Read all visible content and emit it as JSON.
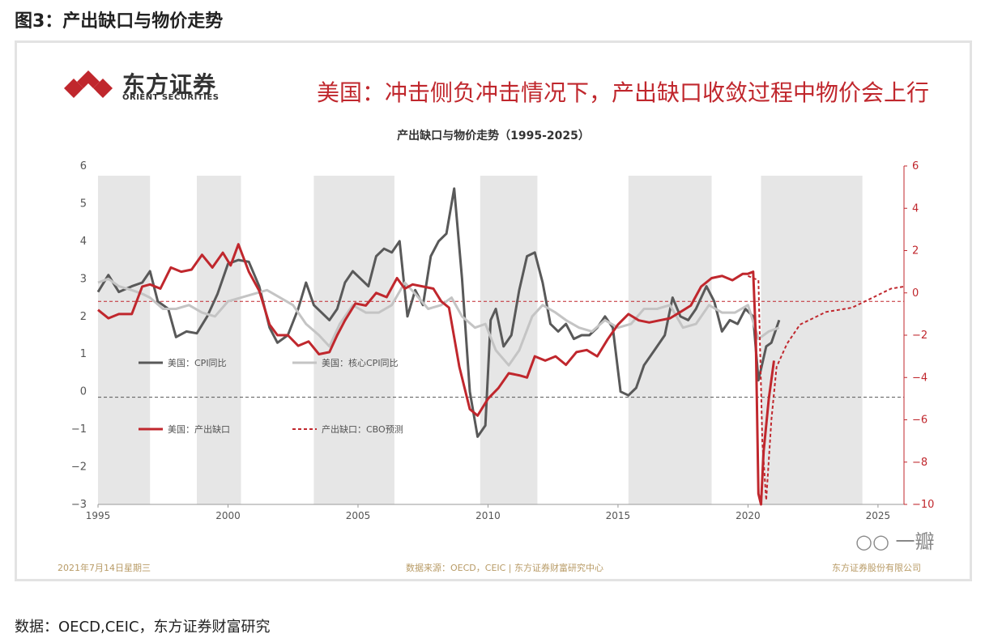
{
  "figure": {
    "title": "图3：产出缺口与物价走势",
    "source_note": "数据：OECD,CEIC，东方证券财富研究"
  },
  "card": {
    "logo_cn": "东方证券",
    "logo_en": "ORIENT SECURITIES",
    "headline": "美国：冲击侧负冲击情况下，产出缺口收敛过程中物价会上行",
    "footer_date": "2021年7月14日星期三",
    "footer_source": "数据来源：OECD，CEIC | 东方证券财富研究中心",
    "footer_company": "东方证券股份有限公司",
    "watermark": "一瓣"
  },
  "chart_data": {
    "type": "line",
    "title": "产出缺口与物价走势（1995-2025）",
    "x_ticks": [
      "1995",
      "2000",
      "2005",
      "2010",
      "2015",
      "2020",
      "2025"
    ],
    "xlim": [
      1995,
      2026
    ],
    "left_axis": {
      "ticks": [
        "6",
        "5",
        "4",
        "3",
        "2",
        "1",
        "0",
        "−1",
        "−2",
        "−3"
      ],
      "ylim": [
        -3,
        6
      ]
    },
    "right_axis": {
      "ticks": [
        "6",
        "4",
        "2",
        "0",
        "−2",
        "−4",
        "−6",
        "−8",
        "−10"
      ],
      "ylim": [
        -10,
        6
      ]
    },
    "recession_shading": [
      [
        1995.0,
        1997.0
      ],
      [
        1998.8,
        2000.5
      ],
      [
        2003.3,
        2006.4
      ],
      [
        2009.7,
        2011.9
      ],
      [
        2015.4,
        2018.6
      ],
      [
        2020.5,
        2024.4
      ]
    ],
    "reference_lines": [
      {
        "axis": "left",
        "value": -0.15,
        "style": "dashed",
        "color": "#555555"
      },
      {
        "axis": "right",
        "value": -0.4,
        "style": "dashed",
        "color": "#c0272d"
      }
    ],
    "series": [
      {
        "name": "美国：CPI同比",
        "axis": "left",
        "color": "#595959",
        "style": "solid",
        "points": [
          [
            1995.0,
            2.65
          ],
          [
            1995.4,
            3.1
          ],
          [
            1995.8,
            2.65
          ],
          [
            1996.3,
            2.8
          ],
          [
            1996.7,
            2.9
          ],
          [
            1997.0,
            3.2
          ],
          [
            1997.3,
            2.4
          ],
          [
            1997.7,
            2.2
          ],
          [
            1998.0,
            1.45
          ],
          [
            1998.4,
            1.6
          ],
          [
            1998.8,
            1.55
          ],
          [
            1999.2,
            2.0
          ],
          [
            1999.6,
            2.6
          ],
          [
            2000.0,
            3.4
          ],
          [
            2000.4,
            3.5
          ],
          [
            2000.8,
            3.45
          ],
          [
            2001.2,
            2.8
          ],
          [
            2001.6,
            1.7
          ],
          [
            2001.9,
            1.3
          ],
          [
            2002.3,
            1.5
          ],
          [
            2002.7,
            2.2
          ],
          [
            2003.0,
            2.9
          ],
          [
            2003.3,
            2.3
          ],
          [
            2003.6,
            2.1
          ],
          [
            2003.9,
            1.9
          ],
          [
            2004.2,
            2.2
          ],
          [
            2004.5,
            2.9
          ],
          [
            2004.8,
            3.2
          ],
          [
            2005.1,
            3.0
          ],
          [
            2005.4,
            2.8
          ],
          [
            2005.7,
            3.6
          ],
          [
            2006.0,
            3.8
          ],
          [
            2006.3,
            3.7
          ],
          [
            2006.6,
            4.0
          ],
          [
            2006.9,
            2.0
          ],
          [
            2007.2,
            2.7
          ],
          [
            2007.5,
            2.3
          ],
          [
            2007.8,
            3.6
          ],
          [
            2008.1,
            4.0
          ],
          [
            2008.4,
            4.2
          ],
          [
            2008.7,
            5.4
          ],
          [
            2009.0,
            3.0
          ],
          [
            2009.3,
            0.0
          ],
          [
            2009.6,
            -1.2
          ],
          [
            2009.9,
            -0.9
          ],
          [
            2010.1,
            1.9
          ],
          [
            2010.3,
            2.2
          ],
          [
            2010.6,
            1.2
          ],
          [
            2010.9,
            1.5
          ],
          [
            2011.2,
            2.7
          ],
          [
            2011.5,
            3.6
          ],
          [
            2011.8,
            3.7
          ],
          [
            2012.1,
            2.9
          ],
          [
            2012.4,
            1.8
          ],
          [
            2012.7,
            1.6
          ],
          [
            2013.0,
            1.8
          ],
          [
            2013.3,
            1.4
          ],
          [
            2013.6,
            1.5
          ],
          [
            2013.9,
            1.5
          ],
          [
            2014.2,
            1.7
          ],
          [
            2014.5,
            2.0
          ],
          [
            2014.8,
            1.7
          ],
          [
            2015.1,
            0.0
          ],
          [
            2015.4,
            -0.1
          ],
          [
            2015.7,
            0.1
          ],
          [
            2016.0,
            0.7
          ],
          [
            2016.4,
            1.1
          ],
          [
            2016.8,
            1.5
          ],
          [
            2017.1,
            2.5
          ],
          [
            2017.4,
            2.0
          ],
          [
            2017.7,
            1.9
          ],
          [
            2018.0,
            2.2
          ],
          [
            2018.4,
            2.8
          ],
          [
            2018.7,
            2.4
          ],
          [
            2019.0,
            1.6
          ],
          [
            2019.3,
            1.9
          ],
          [
            2019.6,
            1.8
          ],
          [
            2019.9,
            2.2
          ],
          [
            2020.2,
            2.0
          ],
          [
            2020.4,
            0.3
          ],
          [
            2020.7,
            1.2
          ],
          [
            2020.9,
            1.3
          ],
          [
            2021.2,
            1.9
          ]
        ]
      },
      {
        "name": "美国：核心CPI同比",
        "axis": "left",
        "color": "#c4c4c4",
        "style": "solid",
        "points": [
          [
            1995.0,
            2.9
          ],
          [
            1995.4,
            3.0
          ],
          [
            1995.8,
            2.8
          ],
          [
            1996.3,
            2.7
          ],
          [
            1996.7,
            2.6
          ],
          [
            1997.0,
            2.5
          ],
          [
            1997.5,
            2.2
          ],
          [
            1998.0,
            2.2
          ],
          [
            1998.5,
            2.3
          ],
          [
            1999.0,
            2.1
          ],
          [
            1999.5,
            2.0
          ],
          [
            2000.0,
            2.4
          ],
          [
            2000.5,
            2.5
          ],
          [
            2001.0,
            2.6
          ],
          [
            2001.5,
            2.7
          ],
          [
            2002.0,
            2.5
          ],
          [
            2002.5,
            2.3
          ],
          [
            2003.0,
            1.8
          ],
          [
            2003.5,
            1.5
          ],
          [
            2003.9,
            1.2
          ],
          [
            2004.3,
            1.8
          ],
          [
            2004.8,
            2.3
          ],
          [
            2005.3,
            2.1
          ],
          [
            2005.8,
            2.1
          ],
          [
            2006.3,
            2.3
          ],
          [
            2006.8,
            2.9
          ],
          [
            2007.2,
            2.6
          ],
          [
            2007.7,
            2.2
          ],
          [
            2008.2,
            2.3
          ],
          [
            2008.6,
            2.5
          ],
          [
            2009.0,
            2.0
          ],
          [
            2009.5,
            1.7
          ],
          [
            2009.9,
            1.8
          ],
          [
            2010.3,
            1.1
          ],
          [
            2010.8,
            0.7
          ],
          [
            2011.2,
            1.1
          ],
          [
            2011.7,
            2.0
          ],
          [
            2012.1,
            2.3
          ],
          [
            2012.6,
            2.1
          ],
          [
            2013.0,
            1.9
          ],
          [
            2013.5,
            1.7
          ],
          [
            2014.0,
            1.6
          ],
          [
            2014.5,
            1.9
          ],
          [
            2015.0,
            1.7
          ],
          [
            2015.5,
            1.8
          ],
          [
            2016.0,
            2.2
          ],
          [
            2016.5,
            2.2
          ],
          [
            2017.0,
            2.3
          ],
          [
            2017.5,
            1.7
          ],
          [
            2018.0,
            1.8
          ],
          [
            2018.5,
            2.3
          ],
          [
            2019.0,
            2.1
          ],
          [
            2019.5,
            2.1
          ],
          [
            2020.0,
            2.3
          ],
          [
            2020.4,
            1.4
          ],
          [
            2020.8,
            1.6
          ],
          [
            2021.2,
            1.7
          ]
        ]
      },
      {
        "name": "美国：产出缺口",
        "axis": "right",
        "color": "#c0272d",
        "style": "solid",
        "points": [
          [
            1995.0,
            -0.8
          ],
          [
            1995.4,
            -1.2
          ],
          [
            1995.8,
            -1.0
          ],
          [
            1996.3,
            -1.0
          ],
          [
            1996.7,
            0.3
          ],
          [
            1997.0,
            0.4
          ],
          [
            1997.4,
            0.2
          ],
          [
            1997.8,
            1.2
          ],
          [
            1998.2,
            1.0
          ],
          [
            1998.6,
            1.1
          ],
          [
            1999.0,
            1.8
          ],
          [
            1999.4,
            1.2
          ],
          [
            1999.8,
            1.9
          ],
          [
            2000.1,
            1.3
          ],
          [
            2000.4,
            2.3
          ],
          [
            2000.8,
            1.0
          ],
          [
            2001.2,
            0.1
          ],
          [
            2001.6,
            -1.5
          ],
          [
            2001.9,
            -2.0
          ],
          [
            2002.3,
            -2.0
          ],
          [
            2002.7,
            -2.5
          ],
          [
            2003.1,
            -2.3
          ],
          [
            2003.5,
            -2.9
          ],
          [
            2003.9,
            -2.8
          ],
          [
            2004.2,
            -2.0
          ],
          [
            2004.5,
            -1.3
          ],
          [
            2004.9,
            -0.5
          ],
          [
            2005.3,
            -0.6
          ],
          [
            2005.7,
            0.0
          ],
          [
            2006.1,
            -0.2
          ],
          [
            2006.5,
            0.7
          ],
          [
            2006.8,
            0.2
          ],
          [
            2007.1,
            0.4
          ],
          [
            2007.5,
            0.3
          ],
          [
            2007.9,
            0.2
          ],
          [
            2008.2,
            -0.4
          ],
          [
            2008.5,
            -0.7
          ],
          [
            2008.9,
            -3.5
          ],
          [
            2009.3,
            -5.5
          ],
          [
            2009.6,
            -5.8
          ],
          [
            2010.0,
            -5.0
          ],
          [
            2010.4,
            -4.5
          ],
          [
            2010.8,
            -3.8
          ],
          [
            2011.2,
            -3.9
          ],
          [
            2011.5,
            -4.0
          ],
          [
            2011.8,
            -3.0
          ],
          [
            2012.2,
            -3.2
          ],
          [
            2012.6,
            -3.0
          ],
          [
            2013.0,
            -3.4
          ],
          [
            2013.4,
            -2.8
          ],
          [
            2013.8,
            -2.7
          ],
          [
            2014.2,
            -3.0
          ],
          [
            2014.6,
            -2.2
          ],
          [
            2015.0,
            -1.5
          ],
          [
            2015.4,
            -1.0
          ],
          [
            2015.8,
            -1.3
          ],
          [
            2016.2,
            -1.4
          ],
          [
            2016.6,
            -1.3
          ],
          [
            2017.0,
            -1.2
          ],
          [
            2017.4,
            -0.9
          ],
          [
            2017.8,
            -0.6
          ],
          [
            2018.2,
            0.3
          ],
          [
            2018.6,
            0.7
          ],
          [
            2019.0,
            0.8
          ],
          [
            2019.4,
            0.6
          ],
          [
            2019.8,
            0.9
          ],
          [
            2020.0,
            0.9
          ],
          [
            2020.2,
            1.0
          ],
          [
            2020.3,
            -2.0
          ],
          [
            2020.4,
            -9.5
          ],
          [
            2020.5,
            -10.0
          ],
          [
            2020.6,
            -7.5
          ],
          [
            2020.8,
            -5.0
          ],
          [
            2021.0,
            -3.2
          ]
        ]
      },
      {
        "name": "产出缺口：CBO预测",
        "axis": "right",
        "color": "#c0272d",
        "style": "dashed",
        "points": [
          [
            2020.0,
            0.8
          ],
          [
            2020.2,
            0.7
          ],
          [
            2020.4,
            0.6
          ],
          [
            2020.55,
            -7.0
          ],
          [
            2020.7,
            -9.8
          ],
          [
            2020.9,
            -6.0
          ],
          [
            2021.1,
            -3.5
          ],
          [
            2021.5,
            -2.4
          ],
          [
            2022.0,
            -1.5
          ],
          [
            2022.5,
            -1.2
          ],
          [
            2023.0,
            -0.9
          ],
          [
            2023.5,
            -0.8
          ],
          [
            2024.0,
            -0.7
          ],
          [
            2024.5,
            -0.4
          ],
          [
            2025.0,
            -0.1
          ],
          [
            2025.5,
            0.2
          ],
          [
            2026.0,
            0.3
          ]
        ]
      }
    ]
  }
}
